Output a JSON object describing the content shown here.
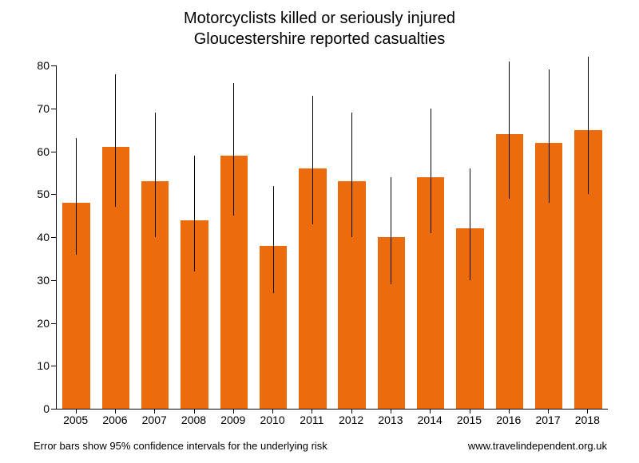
{
  "chart": {
    "type": "bar-with-error",
    "title_line1": "Motorcyclists killed or seriously injured",
    "title_line2": "Gloucestershire reported casualties",
    "title_fontsize": 20,
    "title_color": "#000000",
    "background_color": "#ffffff",
    "axis_color": "#000000",
    "tick_fontsize": 14,
    "footer_fontsize": 13,
    "footer_left": "Error bars show 95% confidence intervals for the underlying risk",
    "footer_right": "www.travelindependent.org.uk",
    "ylim": [
      0,
      80
    ],
    "ytick_step": 10,
    "yticks": [
      0,
      10,
      20,
      30,
      40,
      50,
      60,
      70,
      80
    ],
    "categories": [
      "2005",
      "2006",
      "2007",
      "2008",
      "2009",
      "2010",
      "2011",
      "2012",
      "2013",
      "2014",
      "2015",
      "2016",
      "2017",
      "2018"
    ],
    "values": [
      48,
      61,
      53,
      44,
      59,
      38,
      56,
      53,
      40,
      54,
      42,
      64,
      62,
      65
    ],
    "err_low": [
      36,
      47,
      40,
      32,
      45,
      27,
      43,
      40,
      29,
      41,
      30,
      49,
      48,
      50
    ],
    "err_high": [
      63,
      78,
      69,
      59,
      76,
      52,
      73,
      69,
      54,
      70,
      56,
      81,
      79,
      82
    ],
    "bar_color": "#ec6c0d",
    "errorbar_color": "#000000",
    "errorbar_width": 1,
    "bar_width": 0.7
  }
}
